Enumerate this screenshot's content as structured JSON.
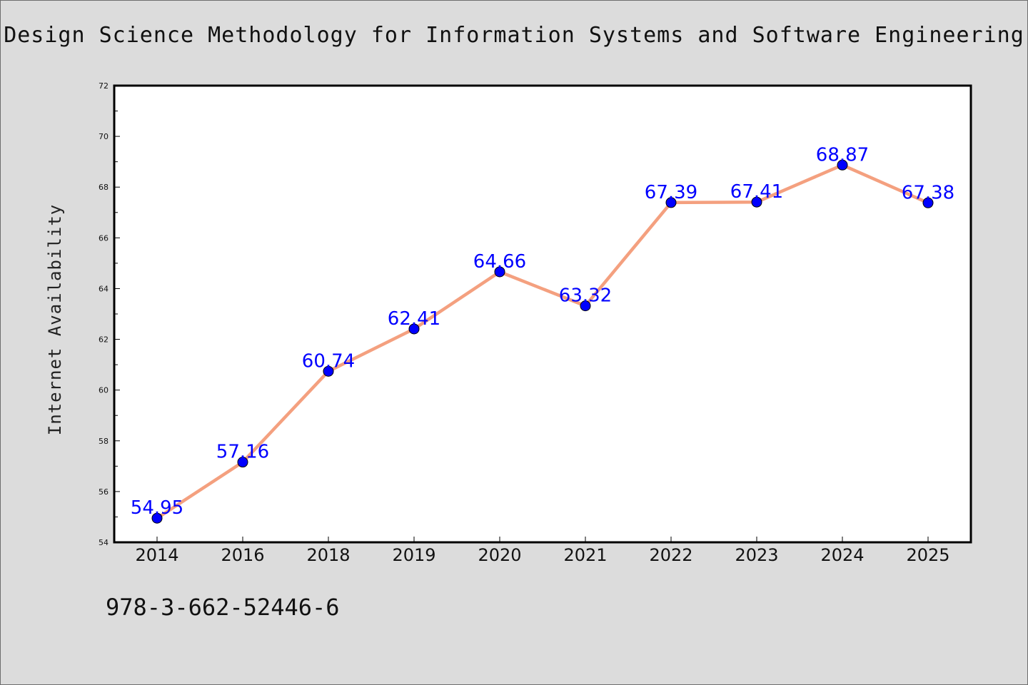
{
  "chart_data": {
    "type": "line",
    "title": "Design Science Methodology for Information Systems and Software Engineering",
    "xlabel": "",
    "ylabel": "Internet Availability",
    "categories": [
      "2014",
      "2016",
      "2018",
      "2019",
      "2020",
      "2021",
      "2022",
      "2023",
      "2024",
      "2025"
    ],
    "values": [
      54.95,
      57.16,
      60.74,
      62.41,
      64.66,
      63.32,
      67.39,
      67.41,
      68.87,
      67.38
    ],
    "data_labels": [
      "54.95",
      "57.16",
      "60.74",
      "62.41",
      "64.66",
      "63.32",
      "67.39",
      "67.41",
      "68.87",
      "67.38"
    ],
    "ylim": [
      54,
      72
    ],
    "yticks": [
      "54",
      "56",
      "58",
      "60",
      "62",
      "64",
      "66",
      "68",
      "70",
      "72"
    ],
    "grid": false,
    "colors": {
      "line": "#f4a07f",
      "marker": "#0000ff",
      "label": "#0000ff"
    }
  },
  "footer": {
    "code": "978-3-662-52446-6"
  }
}
